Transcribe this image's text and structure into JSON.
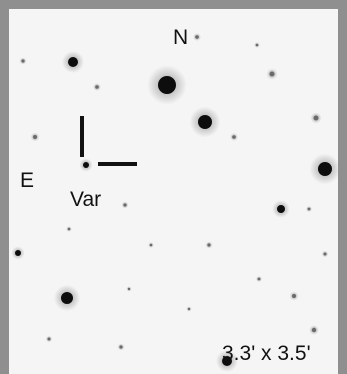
{
  "finder_chart": {
    "north_label": "N",
    "east_label": "E",
    "target_label": "Var",
    "field_size_label": "3.3' x 3.5'"
  },
  "colors": {
    "frame": "#8f8f8f",
    "sky": "#f5f5f5",
    "star": "#111111"
  }
}
